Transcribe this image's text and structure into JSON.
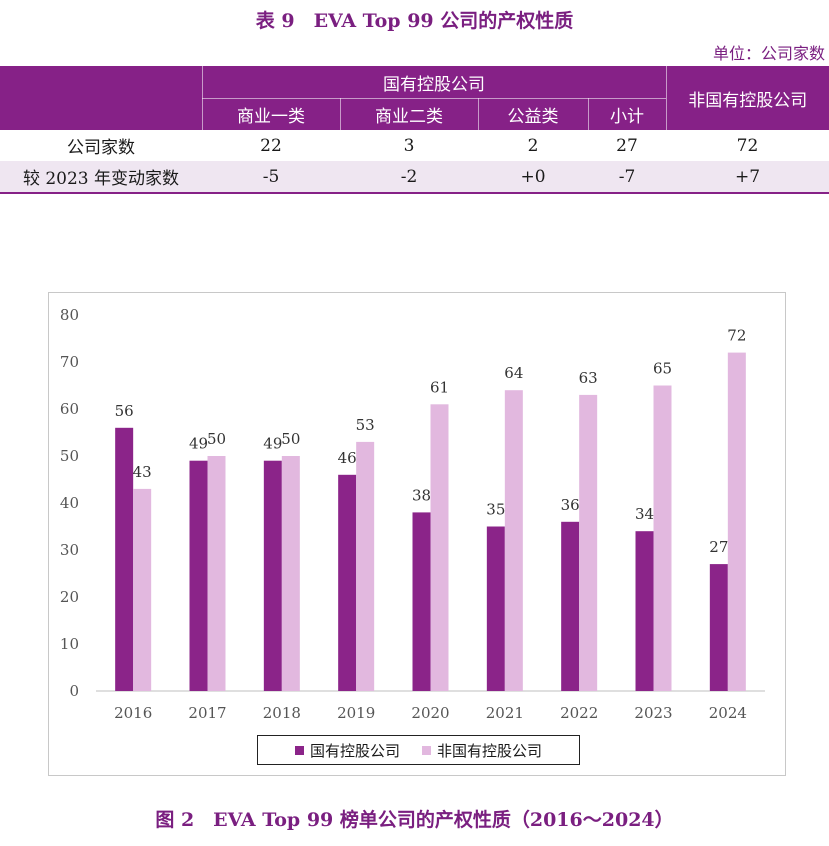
{
  "table": {
    "title": "表 9　EVA Top 99 公司的产权性质",
    "unit": "单位：公司家数",
    "group_header": "国有控股公司",
    "sub_headers": [
      "商业一类",
      "商业二类",
      "公益类",
      "小计"
    ],
    "non_state_header": "非国有控股公司",
    "rows": [
      {
        "label": "公司家数",
        "cells": [
          "22",
          "3",
          "2",
          "27",
          "72"
        ]
      },
      {
        "label": "较 2023 年变动家数",
        "cells": [
          "-5",
          "-2",
          "+0",
          "-7",
          "+7"
        ]
      }
    ]
  },
  "chart_data": {
    "type": "bar",
    "title": "图 2　EVA Top 99 榜单公司的产权性质（2016～2024）",
    "categories": [
      "2016",
      "2017",
      "2018",
      "2019",
      "2020",
      "2021",
      "2022",
      "2023",
      "2024"
    ],
    "series": [
      {
        "name": "国有控股公司",
        "color": "#8b2489",
        "values": [
          56,
          49,
          49,
          46,
          38,
          35,
          36,
          34,
          27
        ]
      },
      {
        "name": "非国有控股公司",
        "color": "#e2b8df",
        "values": [
          43,
          50,
          50,
          53,
          61,
          64,
          63,
          65,
          72
        ]
      }
    ],
    "y_ticks": [
      "0",
      "10",
      "20",
      "30",
      "40",
      "50",
      "60",
      "70",
      "80"
    ],
    "ylim": [
      0,
      80
    ],
    "grid": false,
    "legend_position": "bottom"
  }
}
